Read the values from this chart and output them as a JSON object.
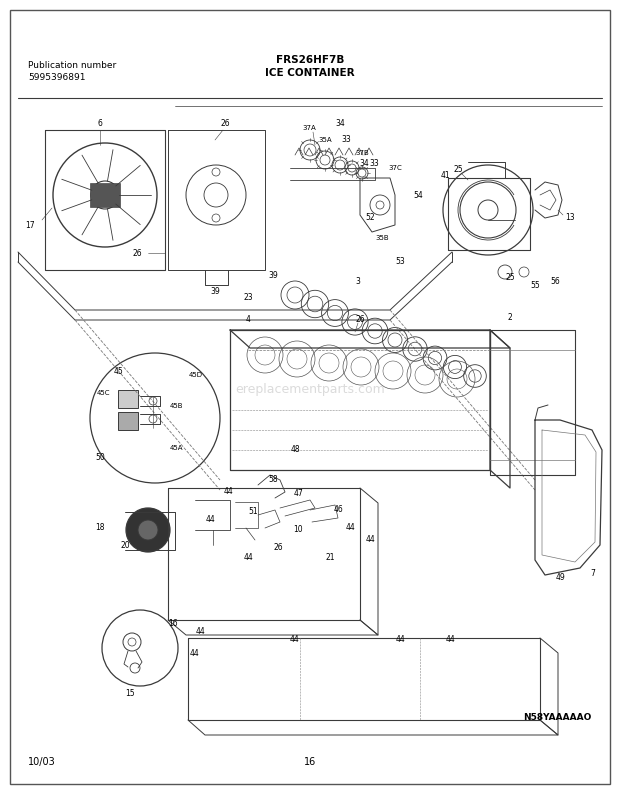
{
  "title_model": "FRS26HF7B",
  "title_section": "ICE CONTAINER",
  "pub_label": "Publication number",
  "pub_number": "5995396891",
  "date": "10/03",
  "page": "16",
  "diagram_code": "N58YAAAAAO",
  "bg_color": "#ffffff",
  "watermark": "ereplacementparts.com",
  "line_color": "#3a3a3a",
  "lw": 0.7
}
